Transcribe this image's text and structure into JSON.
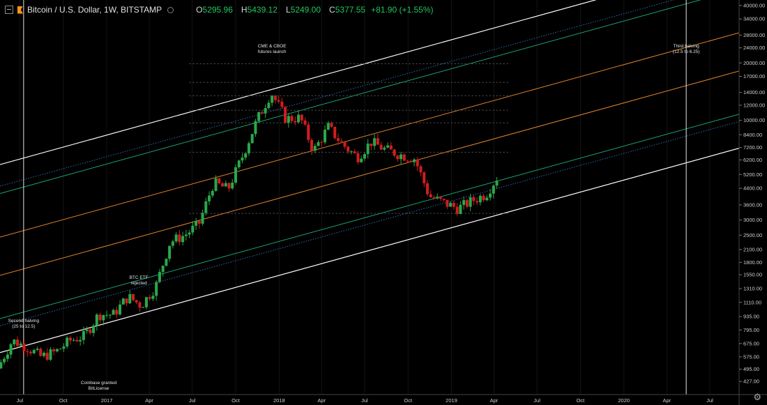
{
  "header": {
    "symbol": "Bitcoin / U.S. Dollar, 1W, BITSTAMP",
    "o_label": "O",
    "o_value": "5295.96",
    "h_label": "H",
    "h_value": "5439.12",
    "l_label": "L",
    "l_value": "5249.00",
    "c_label": "C",
    "c_value": "5377.55",
    "change": "+81.90 (+1.55%)"
  },
  "icons": {
    "collapse": "minus-square-icon",
    "logo": "bitcoin-logo-icon",
    "status": "circle-icon",
    "settings": "gear-icon"
  },
  "colors": {
    "up": "#2ba84a",
    "down": "#d11d1d",
    "channel_outer": "#ffffff",
    "channel_orange": "#e0822a",
    "channel_green": "#1aa37a",
    "channel_blue": "#2b6fb5"
  },
  "chart_data": {
    "type": "candlestick",
    "scale": "log",
    "ylim": [
      400,
      40000
    ],
    "y_ticks": [
      "40000.00",
      "34000.00",
      "28000.00",
      "24000.00",
      "20000.00",
      "17000.00",
      "14000.00",
      "12000.00",
      "10000.00",
      "8400.00",
      "7200.00",
      "6200.00",
      "5200.00",
      "4400.00",
      "3600.00",
      "3000.00",
      "2500.00",
      "2100.00",
      "1800.00",
      "1550.00",
      "1310.00",
      "1110.00",
      "935.00",
      "795.00",
      "675.00",
      "575.00",
      "495.00",
      "427.00"
    ],
    "x_ticks": [
      "Jul",
      "Oct",
      "2017",
      "Apr",
      "Jul",
      "Oct",
      "2018",
      "Apr",
      "Jul",
      "Oct",
      "2019",
      "Apr",
      "Jul",
      "Oct",
      "2020",
      "Apr",
      "Jul"
    ],
    "x_range": [
      "2016-05-20",
      "2020-09-01"
    ],
    "series": [
      {
        "x": "2016-05",
        "close": 500
      },
      {
        "x": "2016-06",
        "close": 700
      },
      {
        "x": "2016-07",
        "close": 650
      },
      {
        "x": "2016-08",
        "close": 575
      },
      {
        "x": "2016-09",
        "close": 610
      },
      {
        "x": "2016-10",
        "close": 700
      },
      {
        "x": "2016-11",
        "close": 740
      },
      {
        "x": "2016-12",
        "close": 960
      },
      {
        "x": "2017-01",
        "close": 960
      },
      {
        "x": "2017-02",
        "close": 1190
      },
      {
        "x": "2017-03",
        "close": 1070
      },
      {
        "x": "2017-04",
        "close": 1350
      },
      {
        "x": "2017-05",
        "close": 2300
      },
      {
        "x": "2017-06",
        "close": 2500
      },
      {
        "x": "2017-07",
        "close": 2850
      },
      {
        "x": "2017-08",
        "close": 4700
      },
      {
        "x": "2017-09",
        "close": 4350
      },
      {
        "x": "2017-10",
        "close": 6450
      },
      {
        "x": "2017-11",
        "close": 10000
      },
      {
        "x": "2017-12",
        "close": 14000
      },
      {
        "x": "2018-01",
        "close": 10200
      },
      {
        "x": "2018-02",
        "close": 10300
      },
      {
        "x": "2018-03",
        "close": 6900
      },
      {
        "x": "2018-04",
        "close": 9200
      },
      {
        "x": "2018-05",
        "close": 7500
      },
      {
        "x": "2018-06",
        "close": 6400
      },
      {
        "x": "2018-07",
        "close": 7700
      },
      {
        "x": "2018-08",
        "close": 7000
      },
      {
        "x": "2018-09",
        "close": 6600
      },
      {
        "x": "2018-10",
        "close": 6300
      },
      {
        "x": "2018-11",
        "close": 4000
      },
      {
        "x": "2018-12",
        "close": 3700
      },
      {
        "x": "2019-01",
        "close": 3450
      },
      {
        "x": "2019-02",
        "close": 3800
      },
      {
        "x": "2019-03",
        "close": 4100
      },
      {
        "x": "2019-04",
        "close": 5377.55
      }
    ],
    "annotations": [
      {
        "date": "2016-07-09",
        "text": [
          "Second halving",
          "(25 to 12.5)"
        ]
      },
      {
        "date": "2017-03-10",
        "text": [
          "BTC ETF",
          "rejected"
        ]
      },
      {
        "date": "2017-12-17",
        "text": [
          "CME & CBOE",
          "futures launch"
        ]
      },
      {
        "date": "2016-12-15",
        "text": [
          "Coinbase granted",
          "BitLicense"
        ]
      },
      {
        "date": "2020-05-12",
        "text": [
          "Third halving",
          "(12.5 to 6.25)"
        ]
      }
    ],
    "fib_levels": [
      19800,
      15800,
      13450,
      11300,
      9700,
      6800,
      3250
    ]
  }
}
